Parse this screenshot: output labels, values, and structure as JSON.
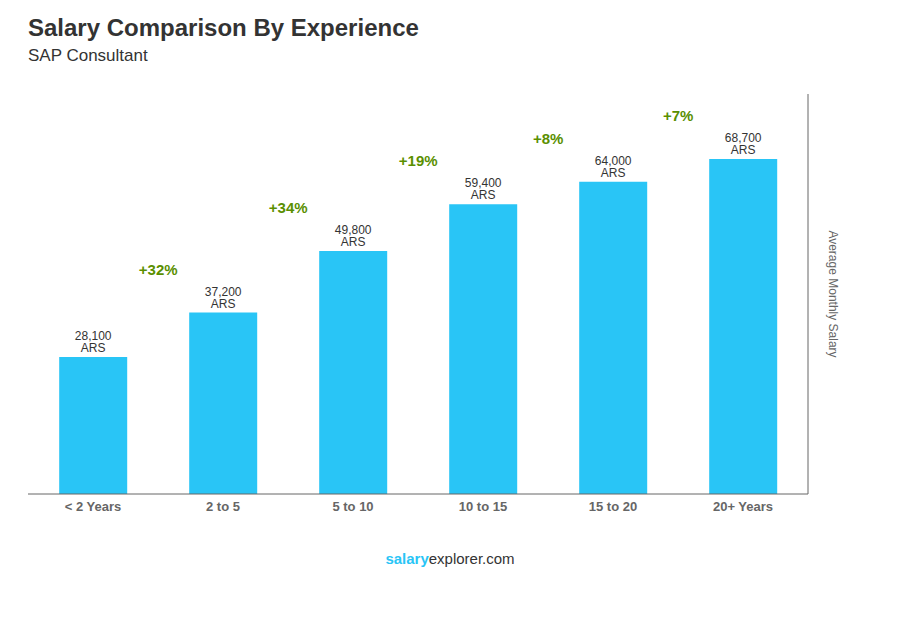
{
  "chart_data": {
    "type": "bar",
    "title": "Salary Comparison By Experience",
    "subtitle": "SAP Consultant",
    "categories": [
      "< 2 Years",
      "2 to 5",
      "5 to 10",
      "10 to 15",
      "15 to 20",
      "20+ Years"
    ],
    "values": [
      28100,
      37200,
      49800,
      59400,
      64000,
      68700
    ],
    "value_labels": [
      "28,100 ARS",
      "37,200 ARS",
      "49,800 ARS",
      "59,400 ARS",
      "64,000 ARS",
      "68,700 ARS"
    ],
    "data_labels": true,
    "color": "#29c5f6",
    "ylabel": "Average Monthly Salary",
    "ylim": [
      0,
      82000
    ],
    "yticks": [],
    "tick_labels": "x",
    "grid": false,
    "annotations": [
      "+32%",
      "+34%",
      "+19%",
      "+8%",
      "+7%"
    ],
    "footer": [
      "salary",
      "explorer.com"
    ]
  }
}
